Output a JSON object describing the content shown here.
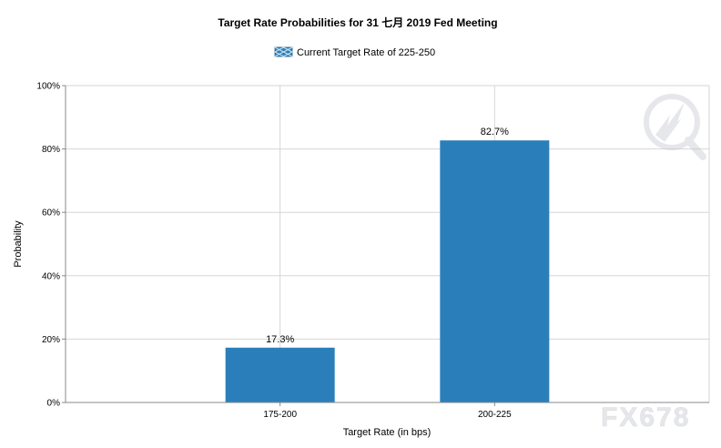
{
  "chart_data": {
    "type": "bar",
    "title": "Target Rate Probabilities for 31 七月 2019 Fed Meeting",
    "legend": {
      "placement": "top-center",
      "entries": [
        "Current Target Rate of 225-250"
      ]
    },
    "categories": [
      "175-200",
      "200-225"
    ],
    "series": [
      {
        "name": "Current Target Rate of 225-250",
        "values": [
          17.3,
          82.7
        ],
        "color": "#2a7fba"
      }
    ],
    "data_labels": [
      "17.3%",
      "82.7%"
    ],
    "xlabel": "Target Rate (in bps)",
    "ylabel": "Probability",
    "ylim": [
      0,
      100
    ],
    "yticks": [
      0,
      20,
      40,
      60,
      80,
      100
    ],
    "ytick_labels": [
      "0%",
      "20%",
      "40%",
      "60%",
      "80%",
      "100%"
    ],
    "grid": true
  },
  "watermark": {
    "text": "FX678",
    "icon": "magnifier-lightning-logo"
  }
}
